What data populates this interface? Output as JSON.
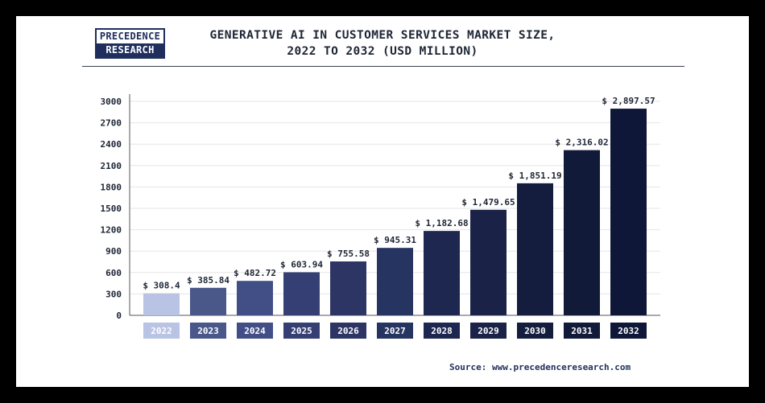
{
  "logo": {
    "line1": "PRECEDENCE",
    "line2": "RESEARCH"
  },
  "source_text": "Source: www.precedenceresearch.com",
  "colors": {
    "background": "#000000",
    "card": "#ffffff",
    "brand": "#1f2e5c",
    "bars": [
      "#b9c3e3",
      "#4a5889",
      "#424f87",
      "#363f73",
      "#2d3565",
      "#253461",
      "#1d2750",
      "#1a2247",
      "#151d3f",
      "#121a3a",
      "#0f1738"
    ]
  },
  "chart_data": {
    "type": "bar",
    "title": "GENERATIVE AI IN CUSTOMER SERVICES MARKET SIZE,",
    "subtitle": "2022 TO 2032 (USD MILLION)",
    "categories": [
      "2022",
      "2023",
      "2024",
      "2025",
      "2026",
      "2027",
      "2028",
      "2029",
      "2030",
      "2031",
      "2032"
    ],
    "values": [
      308.4,
      385.84,
      482.72,
      603.94,
      755.58,
      945.31,
      1182.68,
      1479.65,
      1851.19,
      2316.02,
      2897.57
    ],
    "value_labels": [
      "$ 308.4",
      "$ 385.84",
      "$ 482.72",
      "$ 603.94",
      "$ 755.58",
      "$ 945.31",
      "$ 1,182.68",
      "$ 1,479.65",
      "$ 1,851.19",
      "$ 2,316.02",
      "$ 2,897.57"
    ],
    "ylim": [
      0,
      3000
    ],
    "yticks": [
      "0",
      "300",
      "600",
      "900",
      "1200",
      "1500",
      "1800",
      "2100",
      "2400",
      "2700",
      "3000"
    ],
    "xlabel": "",
    "ylabel": "",
    "grid": true
  }
}
